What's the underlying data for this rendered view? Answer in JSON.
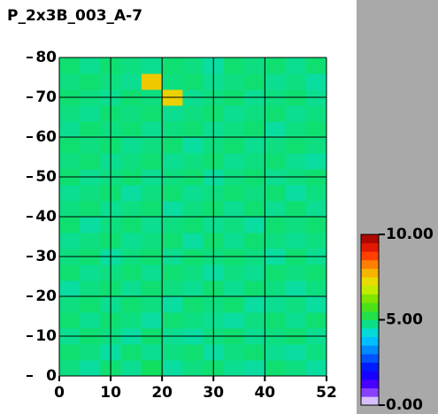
{
  "chart_data": {
    "type": "heatmap",
    "title": "P_2x3B_003_A-7",
    "xlim": [
      0,
      52
    ],
    "ylim": [
      0,
      80
    ],
    "xticks": [
      0,
      10,
      20,
      30,
      40,
      52
    ],
    "yticks": [
      0,
      10,
      20,
      30,
      40,
      50,
      60,
      70,
      80
    ],
    "grid": true,
    "grid_color": "#000000",
    "zlim": [
      0,
      10
    ],
    "cticks": [
      {
        "value": 0,
        "label": "0.00"
      },
      {
        "value": 5,
        "label": "5.00"
      },
      {
        "value": 10,
        "label": "10.00"
      }
    ],
    "colors": [
      "#ffffff",
      "#6000ff",
      "#0000ff",
      "#0070ff",
      "#00d8ff",
      "#10e060",
      "#60e000",
      "#e0f000",
      "#ffa000",
      "#ff2000",
      "#900000"
    ],
    "z": [
      [
        4.8,
        4.6,
        4.9,
        4.7,
        5.0,
        4.6,
        4.8,
        4.9,
        4.7,
        4.6,
        4.9,
        4.8,
        4.6
      ],
      [
        4.9,
        4.8,
        4.6,
        4.9,
        4.7,
        4.8,
        4.9,
        4.6,
        4.8,
        4.9,
        4.7,
        4.6,
        4.8
      ],
      [
        4.7,
        4.9,
        4.8,
        4.6,
        4.9,
        4.7,
        4.6,
        4.8,
        4.9,
        4.7,
        4.8,
        4.9,
        4.7
      ],
      [
        4.9,
        4.7,
        4.9,
        4.8,
        4.6,
        4.9,
        4.8,
        4.7,
        4.6,
        4.8,
        4.9,
        4.7,
        4.9
      ],
      [
        4.8,
        4.9,
        4.7,
        4.9,
        4.8,
        4.6,
        4.9,
        4.8,
        4.9,
        4.6,
        4.7,
        4.8,
        4.6
      ],
      [
        4.6,
        4.8,
        4.9,
        4.7,
        4.9,
        4.8,
        4.7,
        4.9,
        4.7,
        4.9,
        4.8,
        4.6,
        4.8
      ],
      [
        4.9,
        4.7,
        4.8,
        4.9,
        4.7,
        4.9,
        4.8,
        4.6,
        4.8,
        4.7,
        4.9,
        4.8,
        4.9
      ],
      [
        4.8,
        4.9,
        4.6,
        4.8,
        4.9,
        4.7,
        4.9,
        4.8,
        4.9,
        4.8,
        4.6,
        4.9,
        4.7
      ],
      [
        4.7,
        4.8,
        4.9,
        4.7,
        4.8,
        4.9,
        4.6,
        4.9,
        4.7,
        4.9,
        4.8,
        4.7,
        4.8
      ],
      [
        4.9,
        4.6,
        4.8,
        4.9,
        4.7,
        4.8,
        4.9,
        4.7,
        4.8,
        4.6,
        4.9,
        4.8,
        4.9
      ],
      [
        4.8,
        4.9,
        4.7,
        4.8,
        4.9,
        4.6,
        4.8,
        4.9,
        4.7,
        4.9,
        4.7,
        4.9,
        4.7
      ],
      [
        4.7,
        4.8,
        4.9,
        4.6,
        4.8,
        4.9,
        4.7,
        4.8,
        4.9,
        4.8,
        4.9,
        4.6,
        4.8
      ],
      [
        4.9,
        4.7,
        4.8,
        4.9,
        4.7,
        4.8,
        4.9,
        4.6,
        4.8,
        4.9,
        4.7,
        4.8,
        4.9
      ],
      [
        4.8,
        4.9,
        4.7,
        4.8,
        4.9,
        4.7,
        4.8,
        4.9,
        4.7,
        4.8,
        4.9,
        4.7,
        4.6
      ],
      [
        4.9,
        4.8,
        4.9,
        4.7,
        4.8,
        4.9,
        4.6,
        4.8,
        4.9,
        4.7,
        4.8,
        4.9,
        4.8
      ],
      [
        4.7,
        4.9,
        4.8,
        4.9,
        4.7,
        4.8,
        4.9,
        4.7,
        4.8,
        4.9,
        4.6,
        4.8,
        4.9
      ],
      [
        4.8,
        4.7,
        4.9,
        4.8,
        4.9,
        4.7,
        4.8,
        4.9,
        4.7,
        4.8,
        4.9,
        4.7,
        4.8
      ],
      [
        4.9,
        4.8,
        4.7,
        4.9,
        4.8,
        7.4,
        4.7,
        4.8,
        4.9,
        4.7,
        4.8,
        4.9,
        4.7
      ],
      [
        4.8,
        4.9,
        4.8,
        4.7,
        7.5,
        4.8,
        4.9,
        4.7,
        4.8,
        4.9,
        4.7,
        4.8,
        4.6
      ],
      [
        4.9,
        4.7,
        4.9,
        4.8,
        4.7,
        4.9,
        4.8,
        4.6,
        4.9,
        4.8,
        4.9,
        4.7,
        4.9
      ]
    ]
  }
}
